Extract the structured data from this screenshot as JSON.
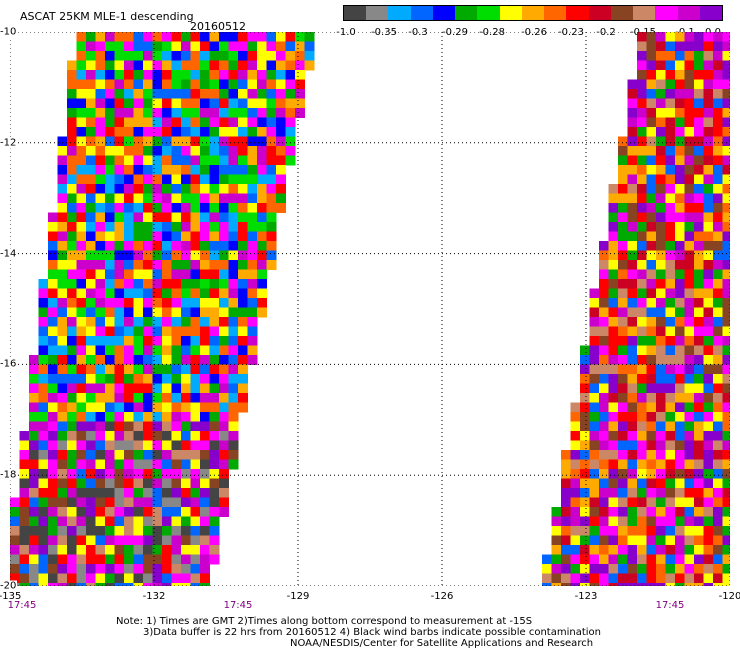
{
  "title": "ASCAT 25KM MLE-1 descending",
  "date": "20160512",
  "colorbar": {
    "colors": [
      "#444444",
      "#888888",
      "#00aaff",
      "#0066ff",
      "#0000ff",
      "#00aa00",
      "#00dd00",
      "#ffff00",
      "#ffaa00",
      "#ff6600",
      "#ff0000",
      "#cc0022",
      "#884422",
      "#cc8866",
      "#ff00ff",
      "#cc00cc",
      "#8800cc"
    ],
    "labels": [
      "-1.0",
      "-0.35",
      "-0.3",
      "-0.29",
      "-0.28",
      "-0.26",
      "-0.23",
      "-0.2",
      "-0.15",
      "-0.1",
      "0.0"
    ]
  },
  "axes": {
    "lat_ticks": [
      "-10",
      "-12",
      "-14",
      "-16",
      "-18",
      "-20"
    ],
    "lon_ticks": [
      "-135",
      "-132",
      "-129",
      "-126",
      "-123",
      "-120"
    ],
    "lat_range": [
      -20,
      -10
    ],
    "lon_range": [
      -135,
      -120
    ],
    "grid": "dotted"
  },
  "swaths": [
    {
      "time": "17:45",
      "times_position_lon": -135
    },
    {
      "time": "17:45",
      "times_position_lon": -130.5
    },
    {
      "time": "17:45",
      "times_position_lon": -121.5
    }
  ],
  "notes": {
    "line1": "Note: 1) Times are GMT 2)Times along bottom correspond to measurement at -15S",
    "line2": "3)Data buffer is 22 hrs from 20160512 4) Black wind barbs indicate possible contamination",
    "line3": "NOAA/NESDIS/Center for Satellite Applications and Research"
  }
}
